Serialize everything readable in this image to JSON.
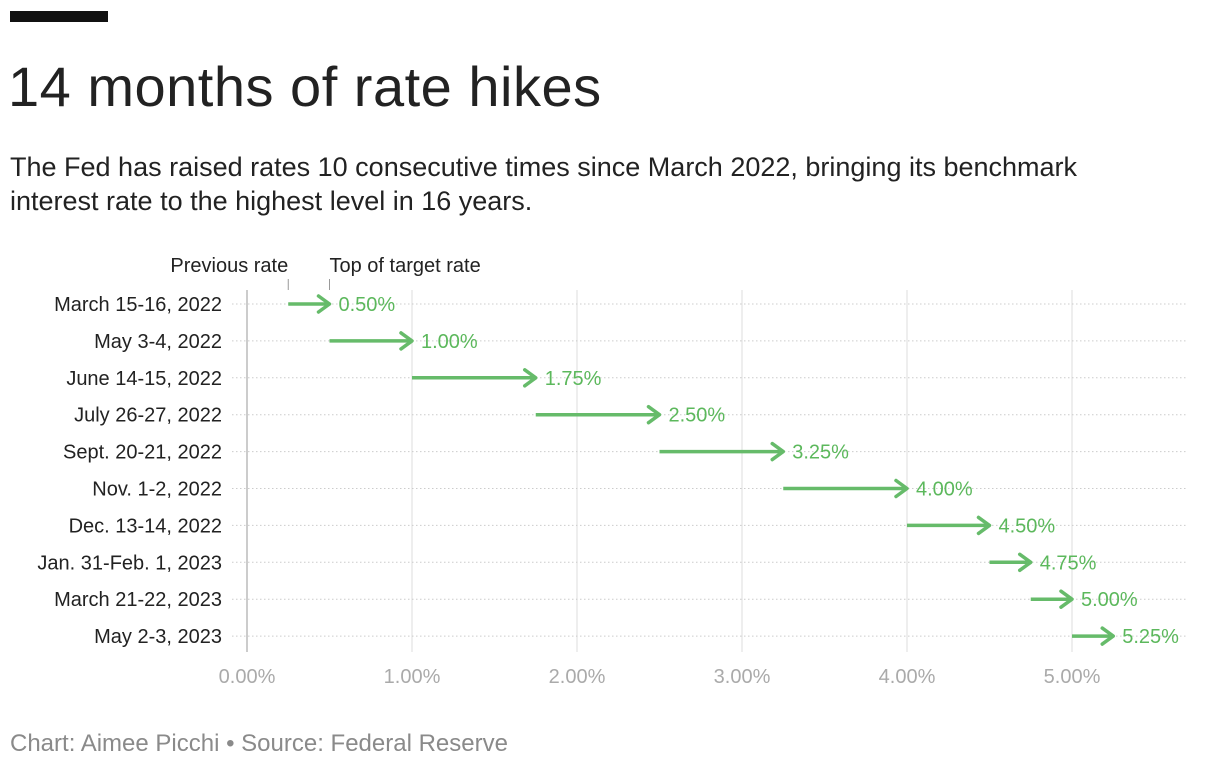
{
  "header": {
    "title": "14 months of rate hikes",
    "subtitle": "The Fed has raised rates 10 consecutive times since March 2022, bringing its benchmark interest rate to the highest level in 16 years."
  },
  "footer": {
    "credit": "Chart: Aimee Picchi • Source: Federal Reserve"
  },
  "colors": {
    "arrow": "#66bb6a",
    "value_text": "#5cb85c",
    "grid": "#dddddd",
    "row_dots": "#cccccc",
    "tick_text": "#aaaaaa"
  },
  "chart_data": {
    "type": "arrow",
    "title": "14 months of rate hikes",
    "annotations": {
      "start_label": "Previous rate",
      "end_label": "Top of target rate"
    },
    "xlim": [
      0,
      5.25
    ],
    "xticks": [
      0,
      1,
      2,
      3,
      4,
      5
    ],
    "xtick_labels": [
      "0.00%",
      "1.00%",
      "2.00%",
      "3.00%",
      "4.00%",
      "5.00%"
    ],
    "grid": true,
    "rows": [
      {
        "date": "March 15-16, 2022",
        "previous": 0.25,
        "top": 0.5,
        "label": "0.50%"
      },
      {
        "date": "May 3-4, 2022",
        "previous": 0.5,
        "top": 1.0,
        "label": "1.00%"
      },
      {
        "date": "June 14-15, 2022",
        "previous": 1.0,
        "top": 1.75,
        "label": "1.75%"
      },
      {
        "date": "July 26-27, 2022",
        "previous": 1.75,
        "top": 2.5,
        "label": "2.50%"
      },
      {
        "date": "Sept. 20-21, 2022",
        "previous": 2.5,
        "top": 3.25,
        "label": "3.25%"
      },
      {
        "date": "Nov. 1-2, 2022",
        "previous": 3.25,
        "top": 4.0,
        "label": "4.00%"
      },
      {
        "date": "Dec. 13-14, 2022",
        "previous": 4.0,
        "top": 4.5,
        "label": "4.50%"
      },
      {
        "date": "Jan. 31-Feb. 1, 2023",
        "previous": 4.5,
        "top": 4.75,
        "label": "4.75%"
      },
      {
        "date": "March 21-22, 2023",
        "previous": 4.75,
        "top": 5.0,
        "label": "5.00%"
      },
      {
        "date": "May 2-3, 2023",
        "previous": 5.0,
        "top": 5.25,
        "label": "5.25%"
      }
    ]
  }
}
